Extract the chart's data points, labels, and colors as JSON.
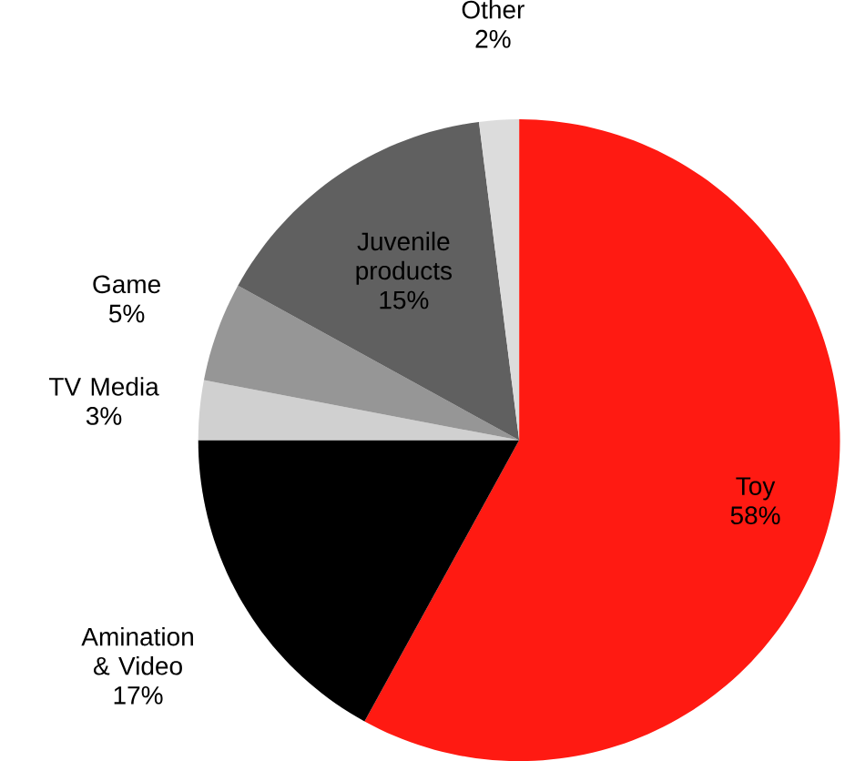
{
  "chart_data": {
    "type": "pie",
    "categories": [
      "Toy",
      "Amination & Video",
      "TV Media",
      "Game",
      "Juvenile products",
      "Other"
    ],
    "values": [
      58,
      17,
      3,
      5,
      15,
      2
    ],
    "value_labels": [
      "58%",
      "17%",
      "3%",
      "5%",
      "15%",
      "2%"
    ],
    "colors": [
      "#ff1a12",
      "#000000",
      "#d0d0d0",
      "#969696",
      "#606060",
      "#dcdcdc"
    ]
  }
}
